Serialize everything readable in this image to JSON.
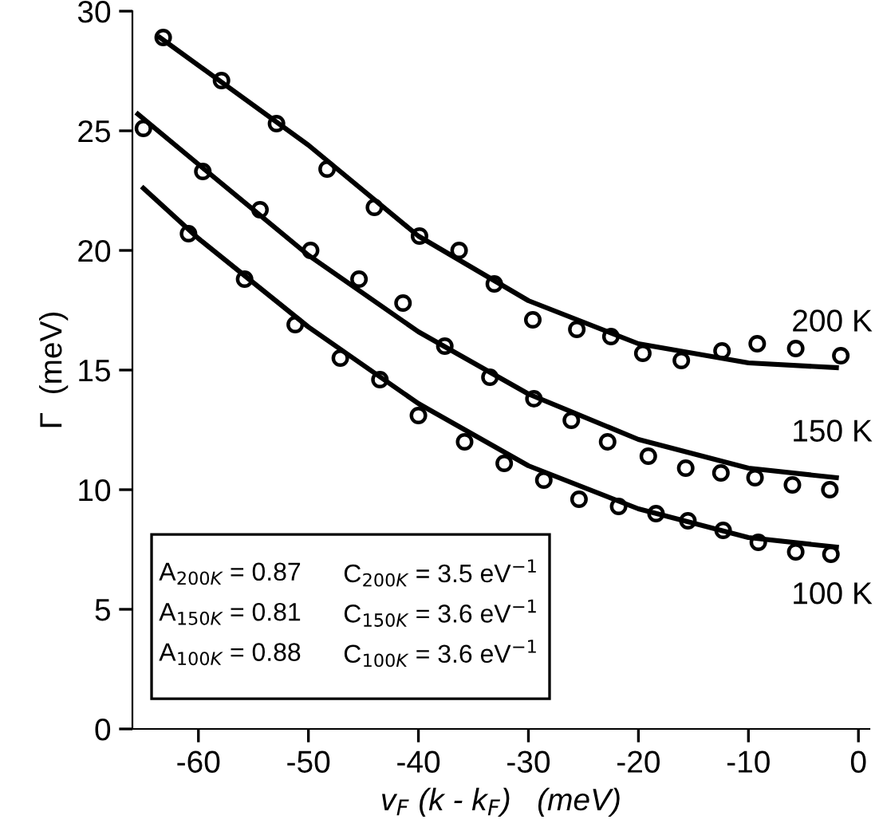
{
  "chart_data": {
    "type": "scatter",
    "xlabel": "v$_{F}$ (k - k$_{F}$)   (meV)",
    "ylabel": "Γ  (meV)",
    "xlim": [
      -66,
      1
    ],
    "ylim": [
      0,
      30
    ],
    "xticks": [
      -60,
      -50,
      -40,
      -30,
      -20,
      -10,
      0
    ],
    "yticks": [
      0,
      5,
      10,
      15,
      20,
      25,
      30
    ],
    "marker": "circle",
    "grid": false,
    "legend": false,
    "series": [
      {
        "color": "#000000",
        "x": [
          -63.2,
          -57.9,
          -52.9,
          -48.3,
          -44.0,
          -39.9,
          -36.3,
          -33.1,
          -29.6,
          -25.6,
          -22.5,
          -19.6,
          -16.1,
          -12.4,
          -9.2,
          -5.7,
          -1.6
        ],
        "values": [
          28.9,
          27.1,
          25.3,
          23.4,
          21.8,
          20.6,
          20.0,
          18.6,
          17.1,
          16.7,
          16.4,
          15.7,
          15.4,
          15.8,
          16.1,
          15.9,
          15.6
        ]
      },
      {
        "color": "#000000",
        "x": [
          -65,
          -59.6,
          -54.4,
          -49.8,
          -45.4,
          -41.4,
          -37.6,
          -33.5,
          -29.5,
          -26.1,
          -22.8,
          -19.1,
          -15.7,
          -12.5,
          -9.4,
          -6.0,
          -2.6
        ],
        "values": [
          25.1,
          23.3,
          21.7,
          20.0,
          18.8,
          17.8,
          16.0,
          14.7,
          13.8,
          12.9,
          12.0,
          11.4,
          10.9,
          10.7,
          10.5,
          10.2,
          10.0
        ]
      },
      {
        "color": "#000000",
        "x": [
          -60.9,
          -55.8,
          -51.2,
          -47.1,
          -43.5,
          -40,
          -35.8,
          -32.2,
          -28.6,
          -25.4,
          -21.8,
          -18.4,
          -15.5,
          -12.3,
          -9.1,
          -5.7,
          -2.5
        ],
        "values": [
          20.7,
          18.8,
          16.9,
          15.5,
          14.6,
          13.1,
          12.0,
          11.1,
          10.4,
          9.6,
          9.3,
          9.0,
          8.7,
          8.3,
          7.8,
          7.4,
          7.3
        ]
      },
      {
        "type": "line",
        "color": "#000000",
        "marker": "none",
        "x": [
          -63.5,
          -50,
          -40,
          -30,
          -20,
          -10,
          -2
        ],
        "values": [
          28.9,
          24.4,
          20.6,
          17.9,
          16.1,
          15.3,
          15.1
        ]
      },
      {
        "type": "line",
        "color": "#000000",
        "marker": "none",
        "x": [
          -65.5,
          -60,
          -50,
          -40,
          -30,
          -20,
          -10,
          -2
        ],
        "values": [
          25.7,
          23.6,
          19.8,
          16.6,
          14.0,
          12.1,
          10.9,
          10.5
        ]
      },
      {
        "type": "line",
        "color": "#000000",
        "marker": "none",
        "x": [
          -65,
          -60,
          -50,
          -40,
          -30,
          -20,
          -10,
          -2
        ],
        "values": [
          22.6,
          20.5,
          16.8,
          13.6,
          11.0,
          9.2,
          8.0,
          7.6
        ]
      }
    ],
    "annotations": [
      "200 K",
      "150 K",
      "100 K",
      "A$_{200K}$ = 0.87",
      "C$_{200K}$ = 3.5 eV$^{−1}$",
      "A$_{150K}$ = 0.81",
      "C$_{150K}$ = 3.6 eV$^{−1}$",
      "A$_{100K}$ = 0.88",
      "C$_{100K}$ = 3.6 eV$^{−1}$"
    ]
  }
}
